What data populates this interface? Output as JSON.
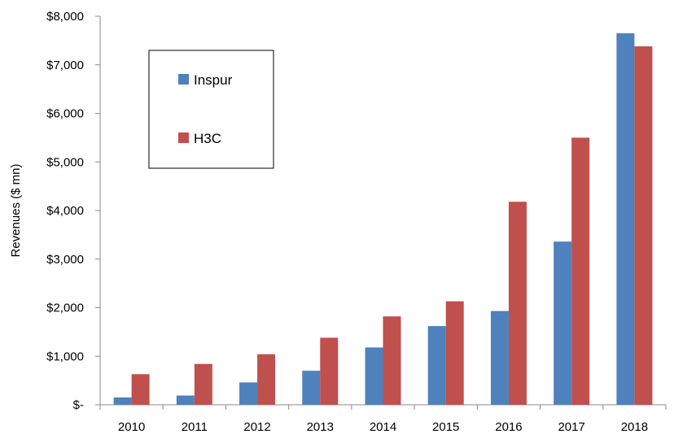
{
  "chart_data": {
    "type": "bar",
    "ylabel": "Revenues ($ mn)",
    "xlabel": "",
    "categories": [
      "2010",
      "2011",
      "2012",
      "2013",
      "2014",
      "2015",
      "2016",
      "2017",
      "2018"
    ],
    "ylim": [
      0,
      8000
    ],
    "yticks": [
      {
        "value": 0,
        "label": "$-"
      },
      {
        "value": 1000,
        "label": "$1,000"
      },
      {
        "value": 2000,
        "label": "$2,000"
      },
      {
        "value": 3000,
        "label": "$3,000"
      },
      {
        "value": 4000,
        "label": "$4,000"
      },
      {
        "value": 5000,
        "label": "$5,000"
      },
      {
        "value": 6000,
        "label": "$6,000"
      },
      {
        "value": 7000,
        "label": "$7,000"
      },
      {
        "value": 8000,
        "label": "$8,000"
      }
    ],
    "series": [
      {
        "name": "Inspur",
        "color": "#4F81BD",
        "values": [
          150,
          190,
          460,
          700,
          1180,
          1620,
          1930,
          3360,
          7650
        ]
      },
      {
        "name": "H3C",
        "color": "#C0504D",
        "values": [
          630,
          840,
          1040,
          1380,
          1820,
          2130,
          4180,
          5500,
          7380
        ]
      }
    ],
    "legend_position": "top-left",
    "grid": false
  }
}
